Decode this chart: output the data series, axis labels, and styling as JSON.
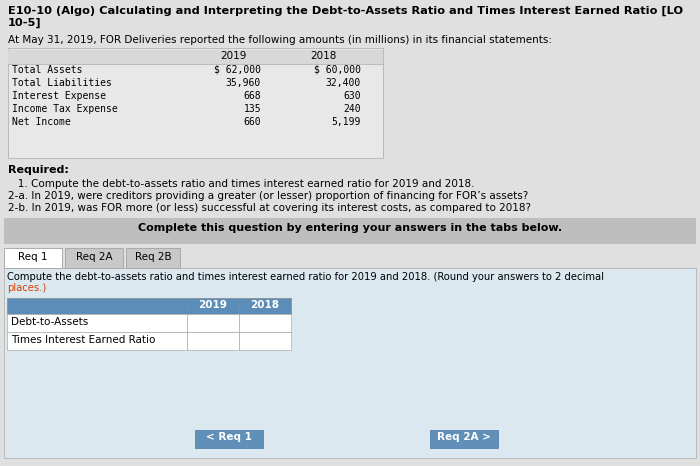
{
  "title_line1": "E10-10 (Algo) Calculating and Interpreting the Debt-to-Assets Ratio and Times Interest Earned Ratio [LO",
  "title_line2": "10-5]",
  "subtitle": "At May 31, 2019, FOR Deliveries reported the following amounts (in millions) in its financial statements:",
  "table_rows": [
    "Total Assets",
    "Total Liabilities",
    "Interest Expense",
    "Income Tax Expense",
    "Net Income"
  ],
  "col_2019": [
    "$ 62,000",
    "35,960",
    "668",
    "135",
    "660"
  ],
  "col_2018": [
    "$ 60,000",
    "32,400",
    "630",
    "240",
    "5,199"
  ],
  "required_text": "Required:",
  "req1": "   1. Compute the debt-to-assets ratio and times interest earned ratio for 2019 and 2018.",
  "req2a": "2-a. In 2019, were creditors providing a greater (or lesser) proportion of financing for FOR’s assets?",
  "req2b": "2-b. In 2019, was FOR more (or less) successful at covering its interest costs, as compared to 2018?",
  "complete_text": "Complete this question by entering your answers in the tabs below.",
  "tab1": "Req 1",
  "tab2": "Req 2A",
  "tab3": "Req 2B",
  "instruction1": "Compute the debt-to-assets ratio and times interest earned ratio for 2019 and 2018. (Round your answers to 2 decimal",
  "instruction2": "places.)",
  "ratio_rows": [
    "Debt-to-Assets",
    "Times Interest Earned Ratio"
  ],
  "btn_left": "< Req 1",
  "btn_right": "Req 2A >",
  "bg_color": "#e0e0e0",
  "white": "#ffffff",
  "light_gray": "#d4d4d4",
  "medium_gray": "#c8c8c8",
  "blue_header": "#5b8db8",
  "blue_btn": "#6090b8",
  "tab_active_bg": "#ffffff",
  "tab_inactive_bg": "#c8c8c8",
  "complete_bar_bg": "#bebebe",
  "table_header_bg": "#5b8db8",
  "input_bg": "#ffffff",
  "text_color": "#000000",
  "mono_font": "monospace",
  "instruction_color": "#d44000"
}
